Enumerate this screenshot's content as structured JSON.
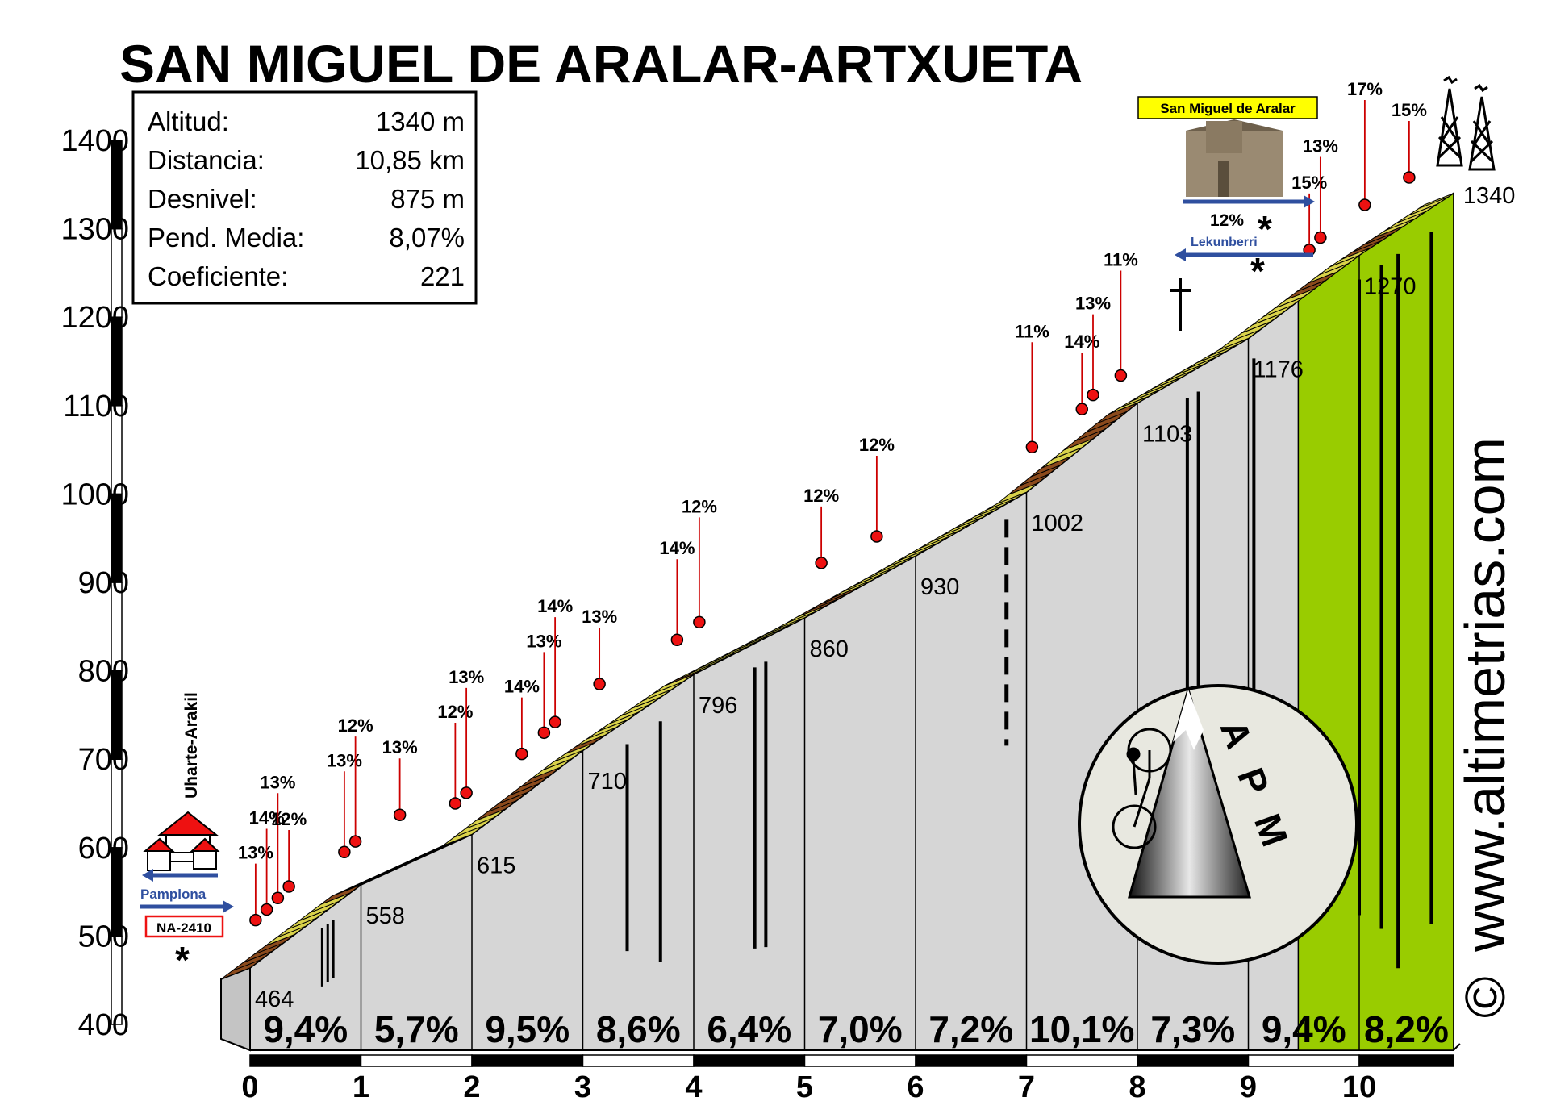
{
  "chart_data": {
    "type": "area",
    "title": "SAN MIGUEL DE ARALAR-ARTXUETA",
    "xlabel": "",
    "ylabel": "",
    "ylim": [
      400,
      1400
    ],
    "xlim": [
      0,
      10.85
    ],
    "y_ticks": [
      "400",
      "500",
      "600",
      "700",
      "800",
      "900",
      "1000",
      "1100",
      "1200",
      "1300",
      "1400"
    ],
    "x_ticks": [
      "0",
      "1",
      "2",
      "3",
      "4",
      "5",
      "6",
      "7",
      "8",
      "9",
      "10"
    ],
    "profile": [
      [
        0,
        464
      ],
      [
        1,
        558
      ],
      [
        2,
        615
      ],
      [
        3,
        710
      ],
      [
        4,
        796
      ],
      [
        5,
        860
      ],
      [
        6,
        930
      ],
      [
        7,
        1002
      ],
      [
        8,
        1103
      ],
      [
        9,
        1176
      ],
      [
        10,
        1270
      ],
      [
        10.85,
        1340
      ]
    ],
    "km_markers": [
      {
        "x": 0,
        "label": "464"
      },
      {
        "x": 1,
        "label": "558"
      },
      {
        "x": 2,
        "label": "615"
      },
      {
        "x": 3,
        "label": "710"
      },
      {
        "x": 4,
        "label": "796"
      },
      {
        "x": 5,
        "label": "860"
      },
      {
        "x": 6,
        "label": "930"
      },
      {
        "x": 7,
        "label": "1002"
      },
      {
        "x": 8,
        "label": "1103"
      },
      {
        "x": 9,
        "label": "1176"
      },
      {
        "x": 10,
        "label": "1270"
      },
      {
        "x": 10.85,
        "label": "1340"
      }
    ],
    "segment_gradients": [
      "9,4%",
      "5,7%",
      "9,5%",
      "8,6%",
      "6,4%",
      "7,0%",
      "7,2%",
      "10,1%",
      "7,3%",
      "9,4%",
      "8,2%"
    ],
    "ramp_labels": [
      {
        "x": 0.05,
        "y": 518,
        "label": "13%"
      },
      {
        "x": 0.15,
        "y": 530,
        "label": "14%"
      },
      {
        "x": 0.25,
        "y": 543,
        "label": "13%"
      },
      {
        "x": 0.35,
        "y": 556,
        "label": "12%"
      },
      {
        "x": 0.85,
        "y": 595,
        "label": "13%"
      },
      {
        "x": 0.95,
        "y": 607,
        "label": "12%"
      },
      {
        "x": 1.35,
        "y": 637,
        "label": "13%"
      },
      {
        "x": 1.85,
        "y": 650,
        "label": "12%"
      },
      {
        "x": 1.95,
        "y": 662,
        "label": "13%"
      },
      {
        "x": 2.45,
        "y": 706,
        "label": "14%"
      },
      {
        "x": 2.65,
        "y": 730,
        "label": "13%"
      },
      {
        "x": 2.75,
        "y": 742,
        "label": "14%"
      },
      {
        "x": 3.15,
        "y": 785,
        "label": "13%"
      },
      {
        "x": 3.85,
        "y": 835,
        "label": "14%"
      },
      {
        "x": 4.05,
        "y": 855,
        "label": "12%"
      },
      {
        "x": 5.15,
        "y": 922,
        "label": "12%"
      },
      {
        "x": 5.65,
        "y": 952,
        "label": "12%"
      },
      {
        "x": 7.05,
        "y": 1053,
        "label": "11%"
      },
      {
        "x": 7.5,
        "y": 1096,
        "label": "14%"
      },
      {
        "x": 7.6,
        "y": 1112,
        "label": "13%"
      },
      {
        "x": 7.85,
        "y": 1134,
        "label": "11%"
      },
      {
        "x": 9.55,
        "y": 1276,
        "label": "15%"
      },
      {
        "x": 9.65,
        "y": 1290,
        "label": "13%"
      },
      {
        "x": 10.05,
        "y": 1327,
        "label": "17%"
      },
      {
        "x": 10.45,
        "y": 1358,
        "label": "15%"
      }
    ],
    "summary": [
      {
        "label": "Altitud:",
        "value": "1340 m"
      },
      {
        "label": "Distancia:",
        "value": "10,85 km"
      },
      {
        "label": "Desnivel:",
        "value": "875 m"
      },
      {
        "label": "Pend. Media:",
        "value": "8,07%"
      },
      {
        "label": "Coeficiente:",
        "value": "221"
      }
    ],
    "places": {
      "start_town": "Uharte-Arakil",
      "left_road_direction": "Pamplona",
      "road_code": "NA-2410",
      "summit_label": "San Miguel de Aralar",
      "right_road_direction": "Lekunberri",
      "right_road_gradient": "12%"
    },
    "logo_text": "APM",
    "website": "www.altimetrias.com",
    "copyright": "©",
    "colors": {
      "road_surface": "#d9d24a",
      "road_steep": "#8b4a1c",
      "profile_fill": "#d4d4d4",
      "final_section": "#99cc00",
      "ramp_marker": "#cc0000",
      "road_arrow": "#2f4f9f",
      "side_arrow": "#8b4a2b"
    }
  }
}
